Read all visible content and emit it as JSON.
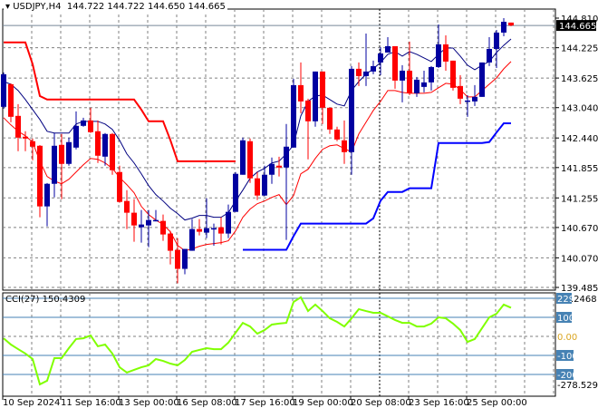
{
  "header": {
    "symbol": "USDJPY,H4",
    "ohlc": "144.722 144.722 144.650 144.665"
  },
  "price_axis": {
    "ticks": [
      "144.810",
      "144.225",
      "143.625",
      "143.040",
      "142.440",
      "141.855",
      "141.255",
      "140.670",
      "140.070",
      "139.485"
    ],
    "current": "144.665"
  },
  "cci": {
    "title": "CCI(27) 150.4309",
    "top": "229.2468",
    "bottom": "-278.5299",
    "levels": [
      "100",
      "0.00",
      "-100",
      "-200"
    ],
    "top_level_box": "229"
  },
  "time_axis": [
    "10 Sep 2024",
    "11 Sep 16:00",
    "13 Sep 00:00",
    "16 Sep 08:00",
    "17 Sep 16:00",
    "19 Sep 00:00",
    "20 Sep 08:00",
    "23 Sep 16:00",
    "25 Sep 00:00"
  ],
  "colors": {
    "bull": "#0000A0",
    "bear": "#FF0000",
    "upper_step": "#FF0000",
    "lower_step": "#0000FF",
    "ma_fast": "#000080",
    "ma_slow": "#FF0000",
    "cci": "#80FF00",
    "level": "#4682B4"
  },
  "chart_data": {
    "type": "candlestick",
    "ylim": [
      139.485,
      144.81
    ],
    "candles": [
      [
        143.056,
        143.736,
        143.02,
        143.7
      ],
      [
        143.503,
        143.52,
        142.751,
        142.859
      ],
      [
        142.877,
        143.11,
        142.179,
        142.447
      ],
      [
        142.465,
        142.573,
        142.179,
        142.429
      ],
      [
        142.376,
        142.429,
        142.0,
        142.268
      ],
      [
        142.286,
        142.3,
        140.872,
        141.087
      ],
      [
        141.087,
        141.55,
        140.693,
        141.534
      ],
      [
        141.534,
        142.537,
        141.266,
        142.286
      ],
      [
        142.304,
        142.519,
        141.23,
        141.928
      ],
      [
        141.928,
        142.447,
        141.892,
        142.358
      ],
      [
        142.25,
        142.966,
        142.215,
        142.68
      ],
      [
        142.68,
        142.841,
        142.662,
        142.787
      ],
      [
        142.787,
        143.038,
        142.54,
        142.555
      ],
      [
        142.573,
        142.787,
        141.946,
        142.089
      ],
      [
        142.071,
        142.537,
        141.892,
        142.519
      ],
      [
        142.519,
        142.537,
        141.713,
        141.803
      ],
      [
        141.767,
        141.892,
        141.16,
        141.176
      ],
      [
        141.194,
        141.409,
        140.639,
        140.962
      ],
      [
        140.962,
        141.23,
        140.388,
        140.711
      ],
      [
        140.675,
        141.015,
        140.37,
        140.729
      ],
      [
        140.711,
        141.015,
        140.281,
        140.818
      ],
      [
        140.8,
        141.015,
        140.79,
        140.818
      ],
      [
        140.8,
        140.926,
        140.407,
        140.532
      ],
      [
        140.55,
        140.604,
        139.941,
        140.21
      ],
      [
        140.228,
        140.46,
        139.565,
        139.852
      ],
      [
        139.852,
        140.246,
        139.744,
        140.246
      ],
      [
        140.21,
        140.836,
        140.21,
        140.639
      ],
      [
        140.639,
        140.836,
        140.514,
        140.586
      ],
      [
        140.568,
        141.248,
        140.46,
        140.657
      ],
      [
        140.65,
        140.746,
        140.31,
        140.657
      ],
      [
        140.675,
        140.872,
        140.335,
        140.55
      ],
      [
        140.55,
        141.123,
        140.46,
        140.979
      ],
      [
        140.979,
        141.767,
        140.979,
        141.731
      ],
      [
        141.713,
        142.447,
        141.713,
        142.394
      ],
      [
        142.376,
        142.429,
        141.552,
        141.642
      ],
      [
        141.642,
        141.767,
        141.212,
        141.302
      ],
      [
        141.302,
        141.892,
        141.29,
        141.713
      ],
      [
        141.713,
        142.053,
        141.534,
        141.928
      ],
      [
        141.892,
        142.07,
        141.678,
        141.856
      ],
      [
        141.856,
        142.716,
        140.424,
        142.268
      ],
      [
        142.25,
        143.61,
        142.25,
        143.485
      ],
      [
        143.485,
        143.933,
        142.93,
        143.163
      ],
      [
        143.181,
        143.217,
        142.018,
        142.77
      ],
      [
        142.77,
        143.754,
        142.662,
        143.754
      ],
      [
        143.754,
        143.754,
        142.716,
        143.038
      ],
      [
        143.038,
        143.038,
        142.519,
        142.608
      ],
      [
        142.608,
        142.662,
        142.376,
        142.41
      ],
      [
        142.393,
        142.787,
        141.928,
        142.16
      ],
      [
        142.16,
        143.861,
        141.713,
        143.808
      ],
      [
        143.808,
        143.933,
        143.467,
        143.664
      ],
      [
        143.664,
        144.506,
        143.467,
        143.754
      ],
      [
        143.754,
        143.97,
        143.7,
        143.861
      ],
      [
        143.933,
        144.237,
        143.682,
        144.112
      ],
      [
        144.13,
        144.434,
        144.13,
        144.255
      ],
      [
        144.255,
        144.255,
        143.414,
        143.575
      ],
      [
        143.575,
        143.879,
        143.145,
        143.771
      ],
      [
        143.771,
        144.345,
        143.288,
        143.324
      ],
      [
        143.324,
        143.646,
        143.253,
        143.593
      ],
      [
        143.45,
        143.771,
        143.342,
        143.539
      ],
      [
        143.539,
        143.861,
        143.378,
        143.843
      ],
      [
        143.843,
        144.685,
        143.825,
        144.291
      ],
      [
        144.291,
        144.47,
        143.771,
        143.951
      ],
      [
        143.969,
        143.969,
        143.378,
        143.432
      ],
      [
        143.468,
        143.682,
        143.11,
        143.217
      ],
      [
        143.163,
        143.288,
        142.859,
        143.181
      ],
      [
        143.163,
        143.485,
        143.073,
        143.253
      ],
      [
        143.253,
        143.933,
        143.253,
        143.933
      ],
      [
        143.933,
        144.434,
        143.861,
        144.201
      ],
      [
        144.201,
        144.578,
        143.825,
        144.524
      ],
      [
        144.524,
        144.81,
        144.452,
        144.738
      ],
      [
        144.722,
        144.722,
        144.65,
        144.665
      ]
    ],
    "upper_step": [
      144.33,
      144.33,
      144.33,
      144.33,
      143.9,
      143.27,
      143.2,
      143.2,
      143.2,
      143.2,
      143.2,
      143.2,
      143.2,
      143.2,
      143.2,
      143.2,
      143.2,
      143.2,
      143.2,
      143.0,
      142.77,
      142.77,
      142.77,
      142.4,
      141.98,
      141.98,
      141.98,
      141.98,
      141.98,
      141.98,
      141.98,
      141.98,
      141.98,
      null,
      null,
      null,
      null,
      null,
      null,
      null,
      null,
      null,
      null,
      null,
      null,
      null,
      null,
      null,
      null,
      null,
      null,
      null,
      null,
      null,
      null,
      null,
      null,
      null,
      null,
      null,
      null,
      null,
      null,
      null,
      null,
      null,
      null,
      null,
      null,
      null,
      null
    ],
    "lower_step": [
      null,
      null,
      null,
      null,
      null,
      null,
      null,
      null,
      null,
      null,
      null,
      null,
      null,
      null,
      null,
      null,
      null,
      null,
      null,
      null,
      null,
      null,
      null,
      null,
      null,
      null,
      null,
      null,
      null,
      null,
      null,
      null,
      null,
      140.228,
      140.228,
      140.228,
      140.228,
      140.228,
      140.228,
      140.228,
      140.5,
      140.747,
      140.747,
      140.747,
      140.747,
      140.747,
      140.747,
      140.747,
      140.747,
      140.747,
      140.747,
      140.85,
      141.2,
      141.373,
      141.373,
      141.373,
      141.445,
      141.445,
      141.445,
      141.445,
      142.34,
      142.34,
      142.34,
      142.34,
      142.34,
      142.34,
      142.34,
      142.36,
      142.55,
      142.73,
      142.73
    ],
    "ma_fast": [
      143.557,
      143.503,
      143.378,
      143.199,
      143.002,
      142.805,
      142.572,
      142.537,
      142.537,
      142.537,
      142.716,
      142.769,
      142.769,
      142.769,
      142.716,
      142.609,
      142.394,
      142.125,
      141.946,
      141.731,
      141.499,
      141.32,
      141.194,
      141.051,
      140.944,
      140.818,
      140.854,
      140.908,
      140.908,
      140.872,
      140.872,
      140.962,
      141.194,
      141.409,
      141.642,
      141.767,
      141.839,
      141.946,
      141.982,
      142.125,
      142.304,
      142.877,
      143.163,
      143.271,
      143.289,
      143.199,
      143.11,
      143.074,
      143.378,
      143.557,
      143.7,
      143.808,
      143.933,
      144.094,
      144.148,
      144.058,
      144.148,
      144.094,
      144.022,
      143.951,
      144.094,
      144.219,
      144.219,
      144.058,
      143.879,
      143.79,
      143.879,
      143.951,
      144.13,
      144.273,
      144.398
    ],
    "ma_slow": [
      142.841,
      142.698,
      142.573,
      142.483,
      142.358,
      141.982,
      141.678,
      141.588,
      141.535,
      141.624,
      141.767,
      141.91,
      142.036,
      142.018,
      141.946,
      141.839,
      141.66,
      141.516,
      141.355,
      141.087,
      140.926,
      140.818,
      140.729,
      140.586,
      140.317,
      140.21,
      140.246,
      140.299,
      140.335,
      140.353,
      140.371,
      140.407,
      140.604,
      140.872,
      141.033,
      141.141,
      141.194,
      141.266,
      141.32,
      141.123,
      141.302,
      141.731,
      141.821,
      142.036,
      142.215,
      142.286,
      142.304,
      142.232,
      142.161,
      142.519,
      142.752,
      142.984,
      143.163,
      143.378,
      143.378,
      143.342,
      143.325,
      143.325,
      143.325,
      143.342,
      143.432,
      143.521,
      143.503,
      143.396,
      143.253,
      143.253,
      143.378,
      143.503,
      143.629,
      143.808,
      143.951
    ],
    "cci_values": [
      -10,
      -43,
      -67,
      -90,
      -119,
      -252,
      -233,
      -114,
      -114,
      -62,
      -14,
      -10,
      5,
      -52,
      -43,
      -90,
      -162,
      -190,
      -176,
      -162,
      -152,
      -119,
      -129,
      -143,
      -152,
      -124,
      -81,
      -71,
      -62,
      -67,
      -67,
      -33,
      19,
      71,
      52,
      14,
      33,
      62,
      67,
      71,
      181,
      205,
      133,
      167,
      133,
      95,
      76,
      52,
      95,
      143,
      133,
      124,
      124,
      105,
      86,
      71,
      71,
      52,
      52,
      67,
      100,
      95,
      67,
      33,
      -29,
      -14,
      43,
      100,
      119,
      167,
      150.43
    ],
    "cci_ylim": [
      -278.5299,
      229.2468
    ]
  }
}
